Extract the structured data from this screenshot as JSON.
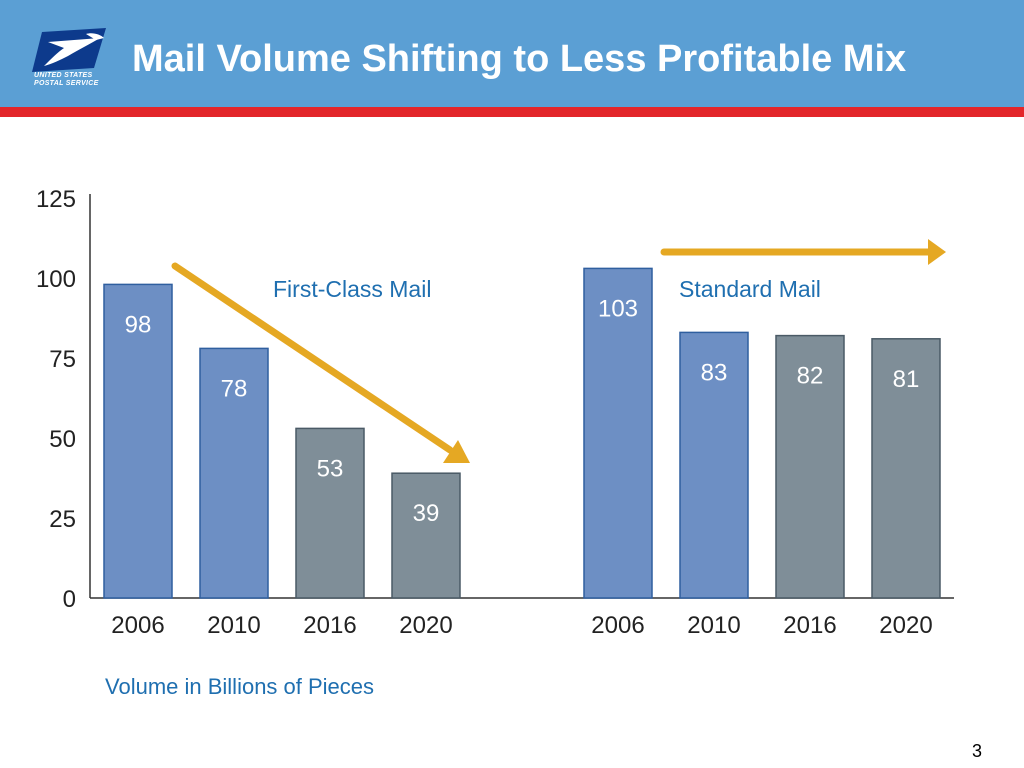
{
  "header": {
    "title": "Mail Volume Shifting to Less Profitable Mix",
    "logo_line1": "UNITED STATES",
    "logo_line2": "POSTAL SERVICE"
  },
  "colors": {
    "header_bg": "#5b9fd4",
    "header_rule": "#e3262a",
    "bar_blue": "#6d8fc4",
    "bar_blue_border": "#2f5f9f",
    "bar_gray": "#7f8e98",
    "bar_gray_border": "#4a5a66",
    "arrow": "#e5a823",
    "group_label": "#1f6fb0"
  },
  "chart_data": {
    "type": "bar",
    "ylim": [
      0,
      125
    ],
    "yticks": [
      "0",
      "25",
      "50",
      "75",
      "100",
      "125"
    ],
    "grid": false,
    "groups": [
      {
        "name": "First-Class Mail",
        "categories": [
          "2006",
          "2010",
          "2016",
          "2020"
        ],
        "values": [
          98,
          78,
          53,
          39
        ],
        "labels": [
          "98",
          "78",
          "53",
          "39"
        ],
        "styles": [
          "blue",
          "blue",
          "gray",
          "gray"
        ],
        "trend": "down"
      },
      {
        "name": "Standard Mail",
        "categories": [
          "2006",
          "2010",
          "2016",
          "2020"
        ],
        "values": [
          103,
          83,
          82,
          81
        ],
        "labels": [
          "103",
          "83",
          "82",
          "81"
        ],
        "styles": [
          "blue",
          "blue",
          "gray",
          "gray"
        ],
        "trend": "flat"
      }
    ]
  },
  "footnote": "Volume in Billions of Pieces",
  "page_number": "3"
}
